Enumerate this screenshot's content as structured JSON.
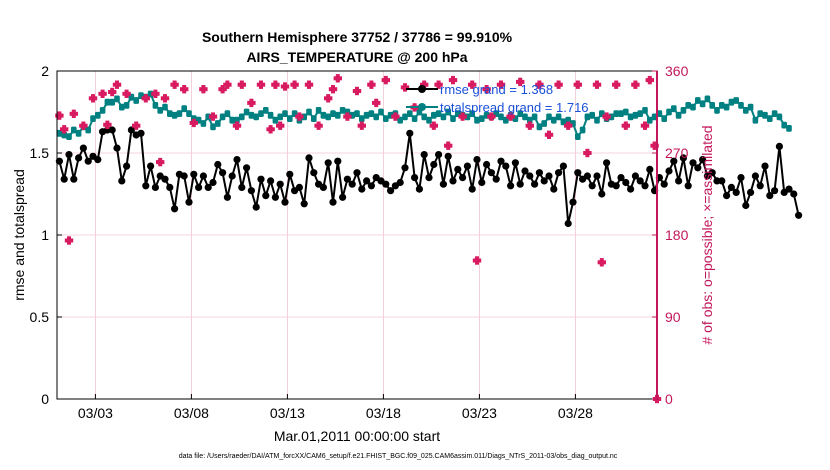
{
  "colors": {
    "rmse": "#000000",
    "spread": "#008080",
    "obs": "#d81b60",
    "grid": "#f2c4d0",
    "right_axis": "#c2185b",
    "legend_text": "#1a4fd8"
  },
  "chart_data": {
    "type": "line",
    "title_line1": "Southern Hemisphere 37752 / 37786 = 99.910%",
    "title_line2": "AIRS_TEMPERATURE @ 200 hPa",
    "xlabel": "Mar.01,2011 00:00:00 start",
    "ylabel_left": "rmse and totalspread",
    "ylabel_right": "# of obs: o=possible; ×=assimilated",
    "footer": "data file: /Users/raeder/DAI/ATM_forcXX/CAM6_setup/f.e21.FHIST_BGC.f09_025.CAM6assim.011/Diags_NTrS_2011-03/obs_diag_output.nc",
    "xlim": [
      0.75,
      32.0
    ],
    "ylim_left": [
      0,
      2
    ],
    "ylim_right": [
      0,
      360
    ],
    "x_ticks": [
      2.75,
      7.75,
      12.75,
      17.75,
      22.75,
      27.75
    ],
    "x_tick_labels": [
      "03/03",
      "03/08",
      "03/13",
      "03/18",
      "03/23",
      "03/28"
    ],
    "y_left_ticks": [
      0,
      0.5,
      1,
      1.5,
      2
    ],
    "y_left_tick_labels": [
      "0",
      "0.5",
      "1",
      "1.5",
      "2"
    ],
    "y_right_ticks": [
      0,
      90,
      180,
      270,
      360
    ],
    "y_right_tick_labels": [
      "0",
      "90",
      "180",
      "270",
      "360"
    ],
    "legend": [
      {
        "name": "rmse",
        "label": "rmse grand = 1.368"
      },
      {
        "name": "spread",
        "label": "totalspread grand = 1.716"
      }
    ],
    "x_start": 0.875,
    "x_step": 0.25,
    "series": [
      {
        "name": "rmse",
        "values": [
          1.45,
          1.34,
          1.49,
          1.34,
          1.47,
          1.53,
          1.45,
          1.48,
          1.46,
          1.63,
          1.64,
          1.64,
          1.53,
          1.33,
          1.42,
          1.64,
          1.61,
          1.62,
          1.3,
          1.42,
          1.29,
          1.36,
          1.34,
          1.29,
          1.16,
          1.37,
          1.36,
          1.2,
          1.37,
          1.29,
          1.36,
          1.29,
          1.32,
          1.43,
          1.38,
          1.23,
          1.36,
          1.46,
          1.29,
          1.41,
          1.27,
          1.17,
          1.34,
          1.24,
          1.33,
          1.23,
          1.31,
          1.2,
          1.37,
          1.27,
          1.29,
          1.19,
          1.47,
          1.38,
          1.31,
          1.29,
          1.44,
          1.2,
          1.45,
          1.23,
          1.34,
          1.31,
          1.38,
          1.28,
          1.33,
          1.3,
          1.35,
          1.33,
          1.31,
          1.27,
          1.3,
          1.32,
          1.41,
          1.62,
          1.35,
          1.28,
          1.49,
          1.35,
          1.43,
          1.49,
          1.31,
          1.48,
          1.33,
          1.4,
          1.35,
          1.42,
          1.28,
          1.46,
          1.32,
          1.43,
          1.38,
          1.34,
          1.45,
          1.42,
          1.3,
          1.44,
          1.31,
          1.39,
          1.36,
          1.31,
          1.38,
          1.33,
          1.36,
          1.28,
          1.38,
          1.42,
          1.07,
          1.2,
          1.38,
          1.34,
          1.36,
          1.3,
          1.36,
          1.25,
          1.44,
          1.31,
          1.3,
          1.35,
          1.32,
          1.28,
          1.36,
          1.33,
          1.3,
          1.4,
          1.27,
          1.35,
          1.31,
          1.39,
          1.45,
          1.33,
          1.47,
          1.3,
          1.44,
          1.41,
          1.46,
          1.36,
          1.38,
          1.33,
          1.33,
          1.24,
          1.29,
          1.26,
          1.35,
          1.18,
          1.26,
          1.36,
          1.3,
          1.42,
          1.24,
          1.27,
          1.54,
          1.26,
          1.28,
          1.25,
          1.12
        ]
      },
      {
        "name": "spread",
        "values": [
          1.62,
          1.61,
          1.6,
          1.64,
          1.62,
          1.66,
          1.64,
          1.71,
          1.73,
          1.76,
          1.81,
          1.81,
          1.83,
          1.78,
          1.79,
          1.84,
          1.82,
          1.85,
          1.84,
          1.86,
          1.79,
          1.76,
          1.78,
          1.74,
          1.73,
          1.74,
          1.77,
          1.74,
          1.71,
          1.7,
          1.68,
          1.72,
          1.66,
          1.68,
          1.72,
          1.74,
          1.7,
          1.7,
          1.72,
          1.75,
          1.73,
          1.72,
          1.74,
          1.76,
          1.73,
          1.7,
          1.72,
          1.74,
          1.71,
          1.74,
          1.7,
          1.72,
          1.75,
          1.71,
          1.76,
          1.73,
          1.72,
          1.74,
          1.73,
          1.76,
          1.75,
          1.73,
          1.74,
          1.71,
          1.73,
          1.74,
          1.72,
          1.75,
          1.71,
          1.73,
          1.74,
          1.7,
          1.72,
          1.74,
          1.71,
          1.75,
          1.72,
          1.7,
          1.73,
          1.74,
          1.72,
          1.75,
          1.71,
          1.74,
          1.73,
          1.72,
          1.74,
          1.7,
          1.71,
          1.73,
          1.72,
          1.74,
          1.72,
          1.7,
          1.73,
          1.71,
          1.74,
          1.72,
          1.7,
          1.72,
          1.66,
          1.68,
          1.72,
          1.7,
          1.72,
          1.69,
          1.7,
          1.68,
          1.6,
          1.64,
          1.72,
          1.73,
          1.7,
          1.74,
          1.71,
          1.72,
          1.74,
          1.74,
          1.75,
          1.72,
          1.73,
          1.74,
          1.76,
          1.7,
          1.72,
          1.74,
          1.71,
          1.75,
          1.77,
          1.73,
          1.76,
          1.79,
          1.78,
          1.82,
          1.8,
          1.83,
          1.79,
          1.76,
          1.79,
          1.78,
          1.81,
          1.82,
          1.79,
          1.76,
          1.78,
          1.7,
          1.74,
          1.73,
          1.71,
          1.74,
          1.72,
          1.67,
          1.65
        ]
      }
    ],
    "obs_possible": [
      {
        "x": 0.875,
        "y": 311
      },
      {
        "x": 1.125,
        "y": 296
      },
      {
        "x": 1.375,
        "y": 174
      },
      {
        "x": 1.625,
        "y": 313
      },
      {
        "x": 2.125,
        "y": 300
      },
      {
        "x": 2.625,
        "y": 330
      },
      {
        "x": 3.125,
        "y": 335
      },
      {
        "x": 3.375,
        "y": 301
      },
      {
        "x": 3.625,
        "y": 337
      },
      {
        "x": 3.875,
        "y": 345
      },
      {
        "x": 4.375,
        "y": 335
      },
      {
        "x": 4.875,
        "y": 300
      },
      {
        "x": 5.375,
        "y": 330
      },
      {
        "x": 5.875,
        "y": 335
      },
      {
        "x": 6.125,
        "y": 260
      },
      {
        "x": 6.375,
        "y": 330
      },
      {
        "x": 6.875,
        "y": 345
      },
      {
        "x": 7.375,
        "y": 340
      },
      {
        "x": 7.875,
        "y": 303
      },
      {
        "x": 8.375,
        "y": 340
      },
      {
        "x": 8.875,
        "y": 310
      },
      {
        "x": 9.375,
        "y": 340
      },
      {
        "x": 9.625,
        "y": 345
      },
      {
        "x": 10.125,
        "y": 300
      },
      {
        "x": 10.375,
        "y": 345
      },
      {
        "x": 10.875,
        "y": 325
      },
      {
        "x": 11.375,
        "y": 345
      },
      {
        "x": 11.875,
        "y": 296
      },
      {
        "x": 12.125,
        "y": 345
      },
      {
        "x": 12.375,
        "y": 300
      },
      {
        "x": 12.625,
        "y": 343
      },
      {
        "x": 13.125,
        "y": 345
      },
      {
        "x": 13.375,
        "y": 310
      },
      {
        "x": 13.875,
        "y": 345
      },
      {
        "x": 14.375,
        "y": 300
      },
      {
        "x": 14.875,
        "y": 330
      },
      {
        "x": 15.125,
        "y": 340
      },
      {
        "x": 15.375,
        "y": 352
      },
      {
        "x": 15.875,
        "y": 310
      },
      {
        "x": 16.375,
        "y": 338
      },
      {
        "x": 16.625,
        "y": 300
      },
      {
        "x": 17.125,
        "y": 345
      },
      {
        "x": 17.375,
        "y": 325
      },
      {
        "x": 17.875,
        "y": 350
      },
      {
        "x": 18.375,
        "y": 310
      },
      {
        "x": 18.875,
        "y": 342
      },
      {
        "x": 19.375,
        "y": 320
      },
      {
        "x": 19.875,
        "y": 345
      },
      {
        "x": 20.375,
        "y": 300
      },
      {
        "x": 20.625,
        "y": 345
      },
      {
        "x": 21.125,
        "y": 278
      },
      {
        "x": 21.375,
        "y": 350
      },
      {
        "x": 21.875,
        "y": 310
      },
      {
        "x": 22.375,
        "y": 345
      },
      {
        "x": 22.625,
        "y": 152
      },
      {
        "x": 23.125,
        "y": 340
      },
      {
        "x": 23.375,
        "y": 310
      },
      {
        "x": 23.875,
        "y": 345
      },
      {
        "x": 24.375,
        "y": 310
      },
      {
        "x": 24.875,
        "y": 348
      },
      {
        "x": 25.375,
        "y": 300
      },
      {
        "x": 25.875,
        "y": 345
      },
      {
        "x": 26.375,
        "y": 290
      },
      {
        "x": 26.875,
        "y": 345
      },
      {
        "x": 27.375,
        "y": 300
      },
      {
        "x": 27.875,
        "y": 345
      },
      {
        "x": 28.375,
        "y": 270
      },
      {
        "x": 28.875,
        "y": 345
      },
      {
        "x": 29.125,
        "y": 150
      },
      {
        "x": 29.375,
        "y": 310
      },
      {
        "x": 29.875,
        "y": 345
      },
      {
        "x": 30.375,
        "y": 300
      },
      {
        "x": 30.875,
        "y": 345
      },
      {
        "x": 31.375,
        "y": 300
      },
      {
        "x": 31.625,
        "y": 350
      },
      {
        "x": 31.875,
        "y": 278
      },
      {
        "x": 32.0,
        "y": 0
      }
    ]
  }
}
